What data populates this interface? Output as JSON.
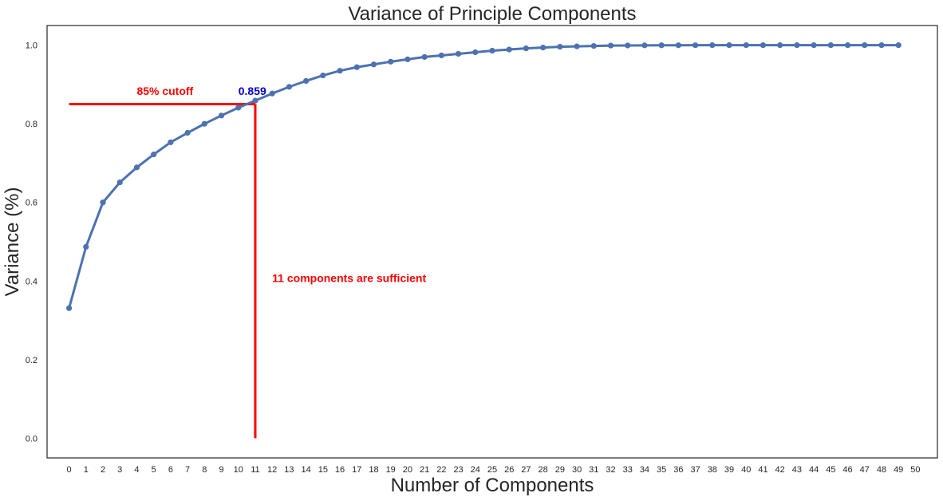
{
  "chart_data": {
    "type": "line",
    "title": "Variance of Principle Components",
    "xlabel": "Number of Components",
    "ylabel": "Variance (%)",
    "xlim": [
      -1.3,
      51.3
    ],
    "ylim": [
      -0.05,
      1.05
    ],
    "x_ticks": [
      0,
      1,
      2,
      3,
      4,
      5,
      6,
      7,
      8,
      9,
      10,
      11,
      12,
      13,
      14,
      15,
      16,
      17,
      18,
      19,
      20,
      21,
      22,
      23,
      24,
      25,
      26,
      27,
      28,
      29,
      30,
      31,
      32,
      33,
      34,
      35,
      36,
      37,
      38,
      39,
      40,
      41,
      42,
      43,
      44,
      45,
      46,
      47,
      48,
      49,
      50
    ],
    "x_tick_labels": [
      "0",
      "1",
      "2",
      "3",
      "4",
      "5",
      "6",
      "7",
      "8",
      "9",
      "10",
      "11",
      "12",
      "13",
      "14",
      "15",
      "16",
      "17",
      "18",
      "19",
      "20",
      "21",
      "22",
      "23",
      "24",
      "25",
      "26",
      "27",
      "28",
      "29",
      "30",
      "31",
      "32",
      "33",
      "34",
      "35",
      "36",
      "37",
      "38",
      "39",
      "40",
      "41",
      "42",
      "43",
      "44",
      "45",
      "46",
      "47",
      "48",
      "49",
      "50"
    ],
    "y_ticks": [
      0.0,
      0.2,
      0.4,
      0.6,
      0.8,
      1.0
    ],
    "y_tick_labels": [
      "0.0",
      "0.2",
      "0.4",
      "0.6",
      "0.8",
      "1.0"
    ],
    "grid": false,
    "series": [
      {
        "color": "#4c72b0",
        "x": [
          0,
          1,
          2,
          3,
          4,
          5,
          6,
          7,
          8,
          9,
          10,
          11,
          12,
          13,
          14,
          15,
          16,
          17,
          18,
          19,
          20,
          21,
          22,
          23,
          24,
          25,
          26,
          27,
          28,
          29,
          30,
          31,
          32,
          33,
          34,
          35,
          36,
          37,
          38,
          39,
          40,
          41,
          42,
          43,
          44,
          45,
          46,
          47,
          48,
          49
        ],
        "values": [
          0.331,
          0.487,
          0.6,
          0.651,
          0.689,
          0.722,
          0.753,
          0.777,
          0.8,
          0.821,
          0.841,
          0.859,
          0.877,
          0.894,
          0.909,
          0.923,
          0.935,
          0.944,
          0.951,
          0.958,
          0.964,
          0.97,
          0.974,
          0.978,
          0.982,
          0.986,
          0.989,
          0.992,
          0.994,
          0.996,
          0.997,
          0.998,
          0.999,
          0.9993,
          0.9995,
          0.9997,
          0.9998,
          0.9999,
          1.0,
          1.0,
          1.0,
          1.0,
          1.0,
          1.0,
          1.0,
          1.0,
          1.0,
          1.0,
          1.0,
          1.0
        ]
      }
    ],
    "annotations": {
      "cutoff_line": {
        "x_from": 0,
        "x_to": 11,
        "y": 0.85,
        "color": "#ff0000"
      },
      "vertical_line": {
        "x": 11,
        "y_from": 0.0,
        "y_to": 0.85,
        "color": "#ff0000"
      },
      "cutoff_label": {
        "text": "85% cutoff",
        "x": 4,
        "y": 0.875,
        "color": "#ff0000"
      },
      "value_label": {
        "text": "0.859",
        "x": 10,
        "y": 0.875,
        "color": "#0000cc"
      },
      "sufficient_label": {
        "text": "11 components are sufficient",
        "x": 12,
        "y": 0.4,
        "color": "#ff0000"
      }
    }
  }
}
